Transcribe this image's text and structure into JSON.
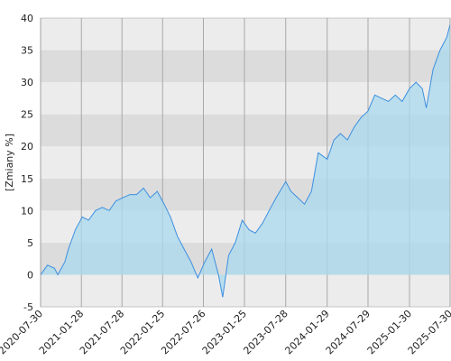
{
  "chart_data": {
    "type": "area",
    "ylabel": "[Zmiany %]",
    "x": [
      "2020-07-30",
      "2020-08-30",
      "2020-09-30",
      "2020-10-15",
      "2020-11-15",
      "2020-12-01",
      "2021-01-01",
      "2021-02-01",
      "2021-03-01",
      "2021-04-01",
      "2021-05-01",
      "2021-06-01",
      "2021-07-01",
      "2021-08-01",
      "2021-09-01",
      "2021-10-01",
      "2021-11-01",
      "2021-12-01",
      "2022-01-01",
      "2022-02-01",
      "2022-03-01",
      "2022-04-01",
      "2022-05-01",
      "2022-06-01",
      "2022-07-01",
      "2022-08-01",
      "2022-09-01",
      "2022-10-01",
      "2022-10-20",
      "2022-11-15",
      "2022-12-15",
      "2023-01-15",
      "2023-02-15",
      "2023-03-15",
      "2023-04-15",
      "2023-05-15",
      "2023-06-15",
      "2023-07-28",
      "2023-08-20",
      "2023-09-20",
      "2023-10-20",
      "2023-11-20",
      "2023-12-20",
      "2024-01-29",
      "2024-02-28",
      "2024-03-28",
      "2024-04-28",
      "2024-05-28",
      "2024-06-28",
      "2024-07-29",
      "2024-08-28",
      "2024-09-28",
      "2024-10-28",
      "2024-11-28",
      "2024-12-28",
      "2025-01-30",
      "2025-02-28",
      "2025-03-28",
      "2025-04-15",
      "2025-05-15",
      "2025-06-15",
      "2025-07-15",
      "2025-07-30"
    ],
    "values": [
      0,
      1.5,
      1,
      0,
      2,
      4,
      7,
      9,
      8.5,
      10,
      10.5,
      10,
      11.5,
      12,
      12.5,
      12.5,
      13.5,
      12,
      13,
      11,
      9,
      6,
      4,
      2,
      -0.5,
      2,
      4,
      0,
      -3.5,
      3,
      5,
      8.5,
      7,
      6.5,
      8,
      10,
      12,
      14.5,
      13,
      12,
      11,
      13,
      19,
      18,
      21,
      22,
      21,
      23,
      24.5,
      25.5,
      28,
      27.5,
      27,
      28,
      27,
      29,
      30,
      29,
      26,
      32,
      35,
      37,
      39
    ],
    "color": "#3d8fe0",
    "fill": "#a9d9ee",
    "xlim": [
      "2020-07-30",
      "2025-07-30"
    ],
    "xticks": [
      "2020-07-30",
      "2021-01-28",
      "2021-07-28",
      "2022-01-25",
      "2022-07-26",
      "2023-01-25",
      "2023-07-28",
      "2024-01-29",
      "2024-07-29",
      "2025-01-30",
      "2025-07-30"
    ],
    "ylim": [
      -5,
      40
    ],
    "yticks": [
      -5,
      0,
      5,
      10,
      15,
      20,
      25,
      30,
      35,
      40
    ],
    "grid": true
  }
}
